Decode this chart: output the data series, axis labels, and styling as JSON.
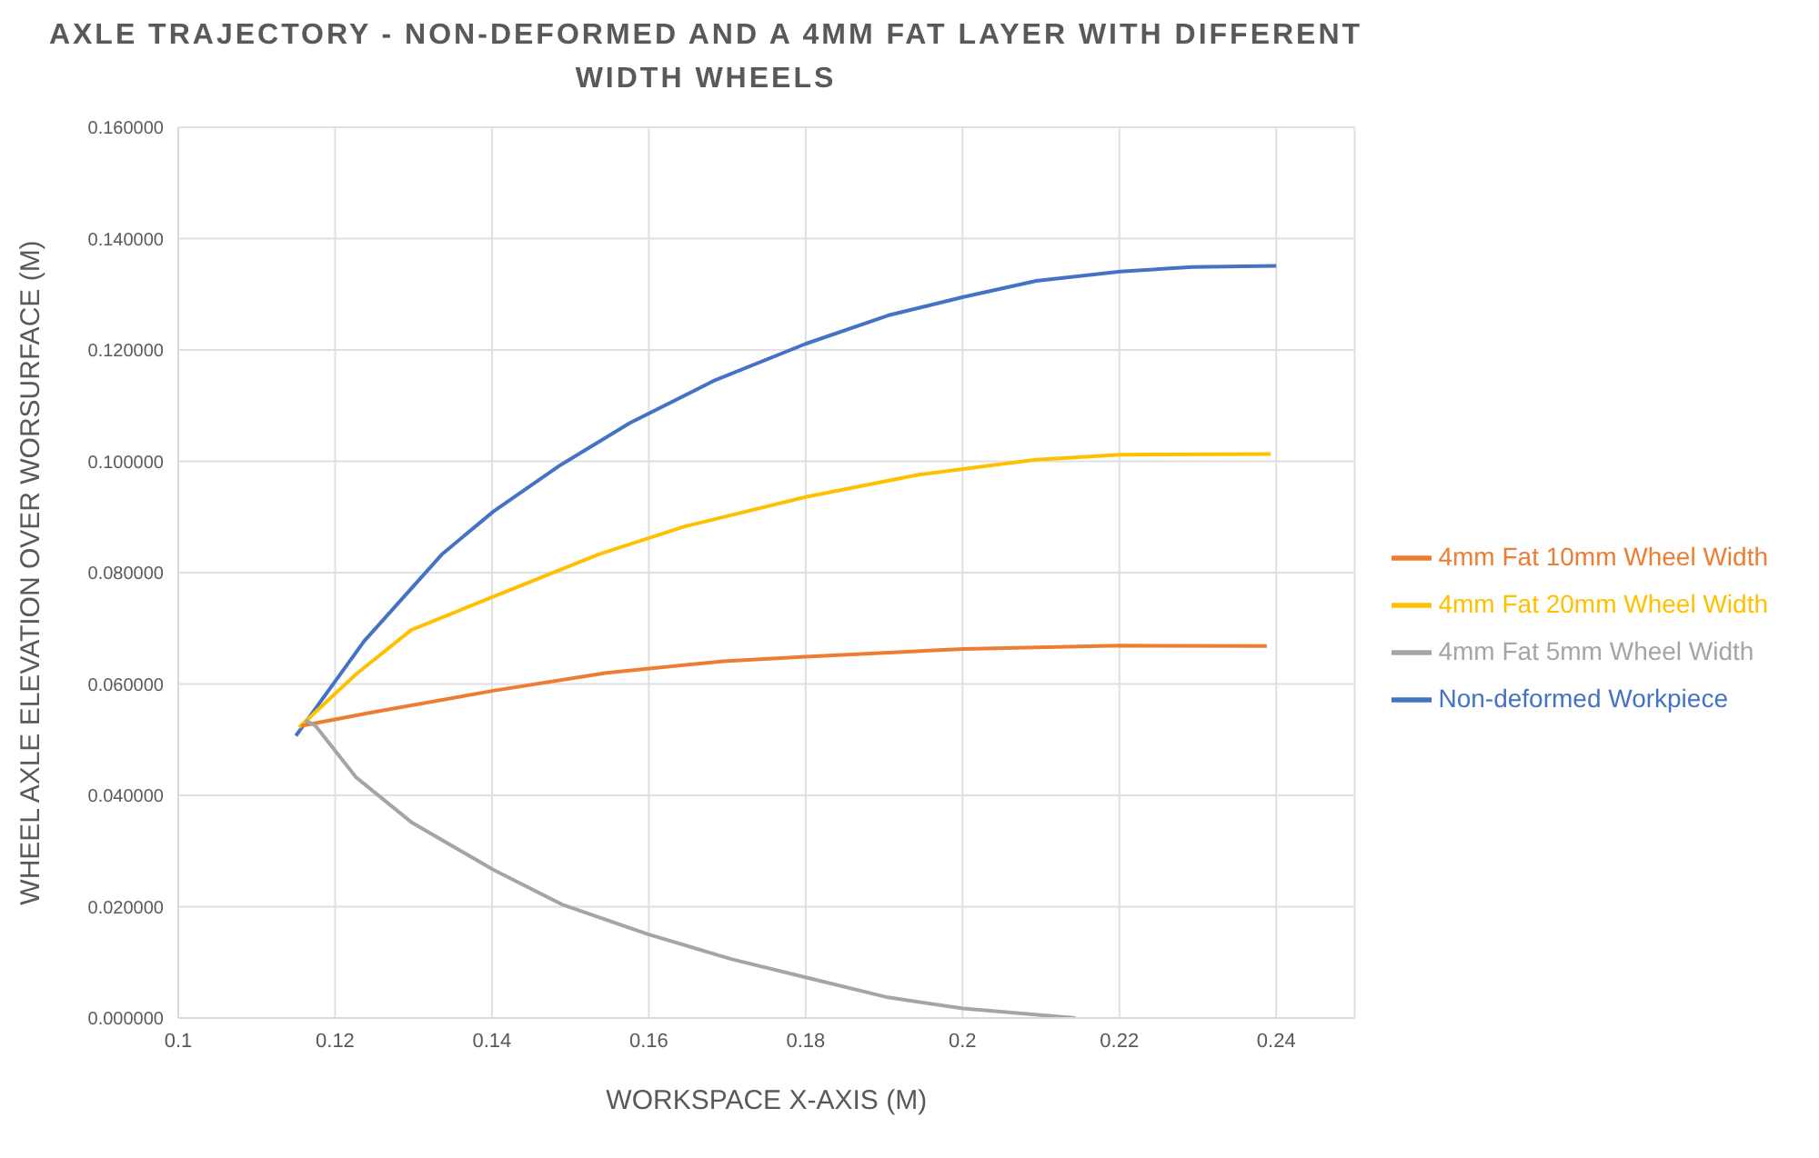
{
  "chart_data": {
    "type": "line",
    "title": "AXLE TRAJECTORY - NON-DEFORMED AND A 4MM FAT LAYER WITH DIFFERENT WIDTH WHEELS",
    "xlabel": "WORKSPACE X-AXIS (M)",
    "ylabel": "WHEEL AXLE ELEVATION OVER WORSURFACE (M)",
    "xlim": [
      0.1,
      0.25
    ],
    "xticks": [
      0.1,
      0.12,
      0.14,
      0.16,
      0.18,
      0.2,
      0.22,
      0.24
    ],
    "ylim": [
      0,
      0.16
    ],
    "yticks": [
      {
        "value": 0,
        "label": "0.000000"
      },
      {
        "value": 0.02,
        "label": "0.020000"
      },
      {
        "value": 0.04,
        "label": "0.040000"
      },
      {
        "value": 0.06,
        "label": "0.060000"
      },
      {
        "value": 0.08,
        "label": "0.080000"
      },
      {
        "value": 0.1,
        "label": "0.100000"
      },
      {
        "value": 0.12,
        "label": "0.120000"
      },
      {
        "value": 0.14,
        "label": "0.140000"
      },
      {
        "value": 0.16,
        "label": "0.160000"
      }
    ],
    "grid": true,
    "legend": "right",
    "series": [
      {
        "name": "Non-deformed Workpiece",
        "color": "#4472c4",
        "x": [
          0.115,
          0.1237,
          0.1337,
          0.1402,
          0.1486,
          0.1576,
          0.1685,
          0.18,
          0.1905,
          0.2001,
          0.2094,
          0.2201,
          0.2293,
          0.24
        ],
        "values": [
          0.0507,
          0.0677,
          0.0834,
          0.091,
          0.0992,
          0.1069,
          0.1146,
          0.1211,
          0.1262,
          0.1295,
          0.1324,
          0.1341,
          0.1349,
          0.1351
        ]
      },
      {
        "name": "4mm Fat 20mm Wheel Width",
        "color": "#ffc000",
        "x": [
          0.1154,
          0.1227,
          0.1297,
          0.1402,
          0.1536,
          0.1646,
          0.18,
          0.1944,
          0.2094,
          0.2201,
          0.2393
        ],
        "values": [
          0.0522,
          0.0618,
          0.0697,
          0.0757,
          0.0833,
          0.0883,
          0.0936,
          0.0976,
          0.1003,
          0.1012,
          0.1013
        ]
      },
      {
        "name": "4mm Fat 10mm Wheel Width",
        "color": "#ed7d31",
        "x": [
          0.1157,
          0.1247,
          0.1402,
          0.1546,
          0.1695,
          0.18,
          0.2001,
          0.2201,
          0.2388
        ],
        "values": [
          0.0525,
          0.0549,
          0.0588,
          0.062,
          0.0641,
          0.0649,
          0.0663,
          0.0669,
          0.0668
        ]
      },
      {
        "name": "4mm Fat 5mm Wheel Width",
        "color": "#a5a5a5",
        "x": [
          0.1162,
          0.1175,
          0.1227,
          0.1297,
          0.1402,
          0.1491,
          0.16,
          0.1705,
          0.18,
          0.1905,
          0.2001,
          0.2144
        ],
        "values": [
          0.0535,
          0.0525,
          0.0432,
          0.0352,
          0.0266,
          0.0203,
          0.015,
          0.0106,
          0.0073,
          0.0037,
          0.0017,
          0
        ]
      }
    ]
  }
}
